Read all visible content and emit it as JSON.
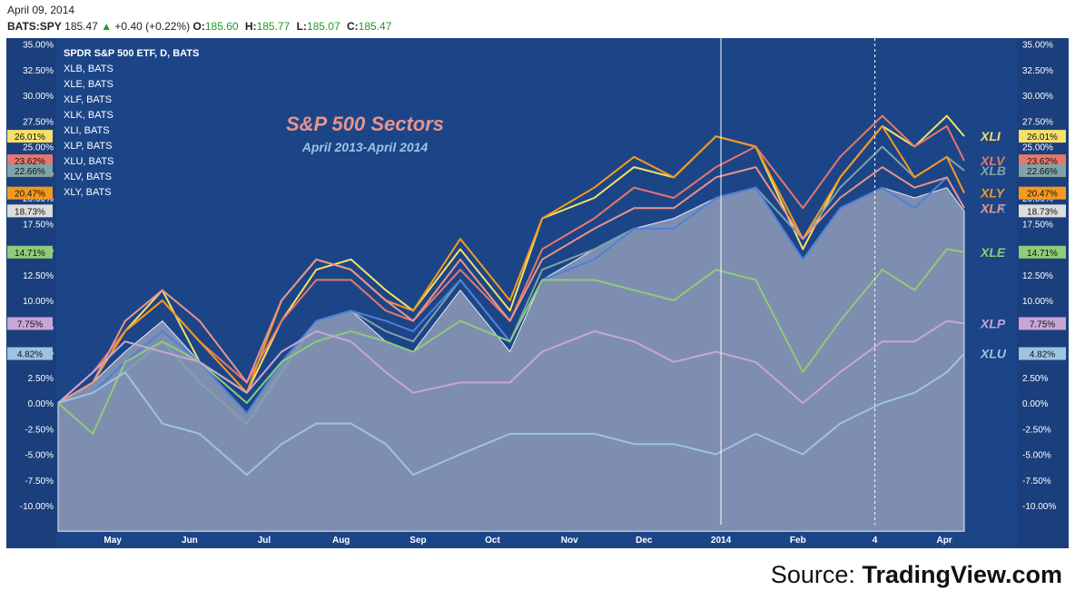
{
  "header": {
    "date": "April 09, 2014",
    "symbol": "BATS:SPY",
    "last": "185.47",
    "change": "+0.40 (+0.22%)",
    "ohlc": [
      {
        "label": "O:",
        "value": "185.60"
      },
      {
        "label": "H:",
        "value": "185.77"
      },
      {
        "label": "L:",
        "value": "185.07"
      },
      {
        "label": "C:",
        "value": "185.47"
      }
    ]
  },
  "source": {
    "prefix": "Source:",
    "brand": "TradingView.com"
  },
  "colors": {
    "background": "#1c4587",
    "axis_panel": "#1a3f7c",
    "spy_fill": "#8795b3",
    "XLI": "#f4e06a",
    "XLV": "#e7776c",
    "XLB": "#7fa3a8",
    "XLK": "#4f7fd9",
    "XLY": "#f59a1e",
    "XLF": "#e8948c",
    "XLE": "#8fcb78",
    "XLP": "#c7a6d6",
    "XLU": "#9dc3e3"
  },
  "chart_data": {
    "type": "line",
    "title": "S&P 500 Sectors",
    "subtitle": "April 2013-April 2014",
    "legend": [
      "SPDR S&P 500 ETF, D, BATS",
      "XLB, BATS",
      "XLE, BATS",
      "XLF, BATS",
      "XLK, BATS",
      "XLI, BATS",
      "XLP, BATS",
      "XLU, BATS",
      "XLV, BATS",
      "XLY, BATS"
    ],
    "legend_position": "top-left",
    "x_ticks": [
      "May",
      "Jun",
      "Jul",
      "Aug",
      "Sep",
      "Oct",
      "Nov",
      "Dec",
      "2014",
      "Feb",
      "4",
      "Apr"
    ],
    "y_ticks": [
      "35.00%",
      "32.50%",
      "30.00%",
      "27.50%",
      "25.00%",
      "22.50%",
      "20.00%",
      "17.50%",
      "15.00%",
      "12.50%",
      "10.00%",
      "7.50%",
      "5.00%",
      "2.50%",
      "0.00%",
      "-2.50%",
      "-5.00%",
      "-7.50%",
      "-10.00%"
    ],
    "ylim": [
      -12.5,
      36
    ],
    "y_unit": "%",
    "x_domain": [
      "2013-04-09",
      "2014-04-09"
    ],
    "vertical_markers": [
      {
        "date": "2014-01-01",
        "style": "solid"
      },
      {
        "date": "2014-03-04",
        "style": "dashed"
      }
    ],
    "series": [
      {
        "name": "SPY",
        "color": "#8795b3",
        "fill": true,
        "x": [
          "2013-04-09",
          "2013-04-23",
          "2013-05-06",
          "2013-05-21",
          "2013-06-05",
          "2013-06-24",
          "2013-07-08",
          "2013-07-22",
          "2013-08-05",
          "2013-08-19",
          "2013-08-30",
          "2013-09-18",
          "2013-10-08",
          "2013-10-21",
          "2013-11-11",
          "2013-11-27",
          "2013-12-13",
          "2013-12-30",
          "2014-01-15",
          "2014-02-03",
          "2014-02-18",
          "2014-03-07",
          "2014-03-20",
          "2014-04-02",
          "2014-04-09"
        ],
        "y": [
          0,
          2,
          5,
          8,
          4,
          -1,
          4,
          8,
          9,
          6,
          5,
          11,
          5,
          12,
          15,
          17,
          18,
          20,
          21,
          14,
          19,
          21,
          20,
          21,
          18.7
        ]
      },
      {
        "name": "XLI",
        "color": "#f4e06a",
        "label": "XLI",
        "badge": "26.01%",
        "x": [
          "2013-04-09",
          "2013-04-23",
          "2013-05-06",
          "2013-05-21",
          "2013-06-05",
          "2013-06-24",
          "2013-07-08",
          "2013-07-22",
          "2013-08-05",
          "2013-08-19",
          "2013-08-30",
          "2013-09-18",
          "2013-10-08",
          "2013-10-21",
          "2013-11-11",
          "2013-11-27",
          "2013-12-13",
          "2013-12-30",
          "2014-01-15",
          "2014-02-03",
          "2014-02-18",
          "2014-03-07",
          "2014-03-20",
          "2014-04-02",
          "2014-04-09"
        ],
        "y": [
          0,
          2,
          7,
          11,
          4,
          1,
          8,
          13,
          14,
          11,
          9,
          15,
          9,
          18,
          20,
          23,
          22,
          26,
          25,
          15,
          22,
          27,
          25,
          28,
          26.01
        ]
      },
      {
        "name": "XLV",
        "color": "#e7776c",
        "label": "XLV",
        "badge": "23.62%",
        "x": [
          "2013-04-09",
          "2013-04-23",
          "2013-05-06",
          "2013-05-21",
          "2013-06-05",
          "2013-06-24",
          "2013-07-08",
          "2013-07-22",
          "2013-08-05",
          "2013-08-19",
          "2013-08-30",
          "2013-09-18",
          "2013-10-08",
          "2013-10-21",
          "2013-11-11",
          "2013-11-27",
          "2013-12-13",
          "2013-12-30",
          "2014-01-15",
          "2014-02-03",
          "2014-02-18",
          "2014-03-07",
          "2014-03-20",
          "2014-04-02",
          "2014-04-09"
        ],
        "y": [
          0,
          3,
          7,
          10,
          6,
          2,
          8,
          12,
          12,
          9,
          8,
          13,
          8,
          15,
          18,
          21,
          20,
          23,
          25,
          19,
          24,
          28,
          25,
          27,
          23.62
        ]
      },
      {
        "name": "XLB",
        "color": "#7fa3a8",
        "label": "XLB",
        "badge": "22.66%",
        "x": [
          "2013-04-09",
          "2013-04-23",
          "2013-05-06",
          "2013-05-21",
          "2013-06-05",
          "2013-06-24",
          "2013-07-08",
          "2013-07-22",
          "2013-08-05",
          "2013-08-19",
          "2013-08-30",
          "2013-09-18",
          "2013-10-08",
          "2013-10-21",
          "2013-11-11",
          "2013-11-27",
          "2013-12-13",
          "2013-12-30",
          "2014-01-15",
          "2014-02-03",
          "2014-02-18",
          "2014-03-07",
          "2014-03-20",
          "2014-04-02",
          "2014-04-09"
        ],
        "y": [
          0,
          1,
          3,
          6,
          2,
          -2,
          3,
          8,
          9,
          7,
          6,
          12,
          6,
          13,
          15,
          17,
          17,
          20,
          21,
          16,
          21,
          25,
          22,
          24,
          22.66
        ]
      },
      {
        "name": "XLK",
        "color": "#4f7fd9",
        "label": "XLK",
        "x": [
          "2013-04-09",
          "2013-04-23",
          "2013-05-06",
          "2013-05-21",
          "2013-06-05",
          "2013-06-24",
          "2013-07-08",
          "2013-07-22",
          "2013-08-05",
          "2013-08-19",
          "2013-08-30",
          "2013-09-18",
          "2013-10-08",
          "2013-10-21",
          "2013-11-11",
          "2013-11-27",
          "2013-12-13",
          "2013-12-30",
          "2014-01-15",
          "2014-02-03",
          "2014-02-18",
          "2014-03-07",
          "2014-03-20",
          "2014-04-02",
          "2014-04-09"
        ],
        "y": [
          0,
          1,
          4,
          7,
          4,
          -1,
          4,
          8,
          9,
          8,
          7,
          12,
          6,
          12,
          14,
          17,
          17,
          20,
          21,
          14,
          19,
          21,
          19,
          22,
          19
        ]
      },
      {
        "name": "XLY",
        "color": "#f59a1e",
        "label": "XLY",
        "badge": "20.47%",
        "x": [
          "2013-04-09",
          "2013-04-23",
          "2013-05-06",
          "2013-05-21",
          "2013-06-05",
          "2013-06-24",
          "2013-07-08",
          "2013-07-22",
          "2013-08-05",
          "2013-08-19",
          "2013-08-30",
          "2013-09-18",
          "2013-10-08",
          "2013-10-21",
          "2013-11-11",
          "2013-11-27",
          "2013-12-13",
          "2013-12-30",
          "2014-01-15",
          "2014-02-03",
          "2014-02-18",
          "2014-03-07",
          "2014-03-20",
          "2014-04-02",
          "2014-04-09"
        ],
        "y": [
          0,
          2,
          7,
          10,
          6,
          1,
          10,
          14,
          13,
          10,
          9,
          16,
          10,
          18,
          21,
          24,
          22,
          26,
          25,
          16,
          22,
          27,
          22,
          24,
          20.47
        ]
      },
      {
        "name": "XLF",
        "color": "#e8948c",
        "label": "XLF",
        "x": [
          "2013-04-09",
          "2013-04-23",
          "2013-05-06",
          "2013-05-21",
          "2013-06-05",
          "2013-06-24",
          "2013-07-08",
          "2013-07-22",
          "2013-08-05",
          "2013-08-19",
          "2013-08-30",
          "2013-09-18",
          "2013-10-08",
          "2013-10-21",
          "2013-11-11",
          "2013-11-27",
          "2013-12-13",
          "2013-12-30",
          "2014-01-15",
          "2014-02-03",
          "2014-02-18",
          "2014-03-07",
          "2014-03-20",
          "2014-04-02",
          "2014-04-09"
        ],
        "y": [
          0,
          2,
          8,
          11,
          8,
          2,
          10,
          14,
          13,
          10,
          8,
          14,
          8,
          14,
          17,
          19,
          19,
          22,
          23,
          16,
          20,
          23,
          21,
          22,
          19
        ]
      },
      {
        "name": "XLE",
        "color": "#8fcb78",
        "label": "XLE",
        "badge": "14.71%",
        "x": [
          "2013-04-09",
          "2013-04-23",
          "2013-05-06",
          "2013-05-21",
          "2013-06-05",
          "2013-06-24",
          "2013-07-08",
          "2013-07-22",
          "2013-08-05",
          "2013-08-19",
          "2013-08-30",
          "2013-09-18",
          "2013-10-08",
          "2013-10-21",
          "2013-11-11",
          "2013-11-27",
          "2013-12-13",
          "2013-12-30",
          "2014-01-15",
          "2014-02-03",
          "2014-02-18",
          "2014-03-07",
          "2014-03-20",
          "2014-04-02",
          "2014-04-09"
        ],
        "y": [
          0,
          -3,
          4,
          6,
          4,
          0,
          4,
          6,
          7,
          6,
          5,
          8,
          6,
          12,
          12,
          11,
          10,
          13,
          12,
          3,
          8,
          13,
          11,
          15,
          14.71
        ]
      },
      {
        "name": "XLP",
        "color": "#c7a6d6",
        "label": "XLP",
        "badge": "7.75%",
        "x": [
          "2013-04-09",
          "2013-04-23",
          "2013-05-06",
          "2013-05-21",
          "2013-06-05",
          "2013-06-24",
          "2013-07-08",
          "2013-07-22",
          "2013-08-05",
          "2013-08-19",
          "2013-08-30",
          "2013-09-18",
          "2013-10-08",
          "2013-10-21",
          "2013-11-11",
          "2013-11-27",
          "2013-12-13",
          "2013-12-30",
          "2014-01-15",
          "2014-02-03",
          "2014-02-18",
          "2014-03-07",
          "2014-03-20",
          "2014-04-02",
          "2014-04-09"
        ],
        "y": [
          0,
          3,
          6,
          5,
          4,
          1,
          5,
          7,
          6,
          3,
          1,
          2,
          2,
          5,
          7,
          6,
          4,
          5,
          4,
          0,
          3,
          6,
          6,
          8,
          7.75
        ]
      },
      {
        "name": "XLU",
        "color": "#9dc3e3",
        "label": "XLU",
        "badge": "4.82%",
        "x": [
          "2013-04-09",
          "2013-04-23",
          "2013-05-06",
          "2013-05-21",
          "2013-06-05",
          "2013-06-24",
          "2013-07-08",
          "2013-07-22",
          "2013-08-05",
          "2013-08-19",
          "2013-08-30",
          "2013-09-18",
          "2013-10-08",
          "2013-10-21",
          "2013-11-11",
          "2013-11-27",
          "2013-12-13",
          "2013-12-30",
          "2014-01-15",
          "2014-02-03",
          "2014-02-18",
          "2014-03-07",
          "2014-03-20",
          "2014-04-02",
          "2014-04-09"
        ],
        "y": [
          0,
          1,
          3,
          -2,
          -3,
          -7,
          -4,
          -2,
          -2,
          -4,
          -7,
          -5,
          -3,
          -3,
          -3,
          -4,
          -4,
          -5,
          -3,
          -5,
          -2,
          0,
          1,
          3,
          4.82
        ]
      }
    ],
    "spy_badge": "18.73%"
  }
}
